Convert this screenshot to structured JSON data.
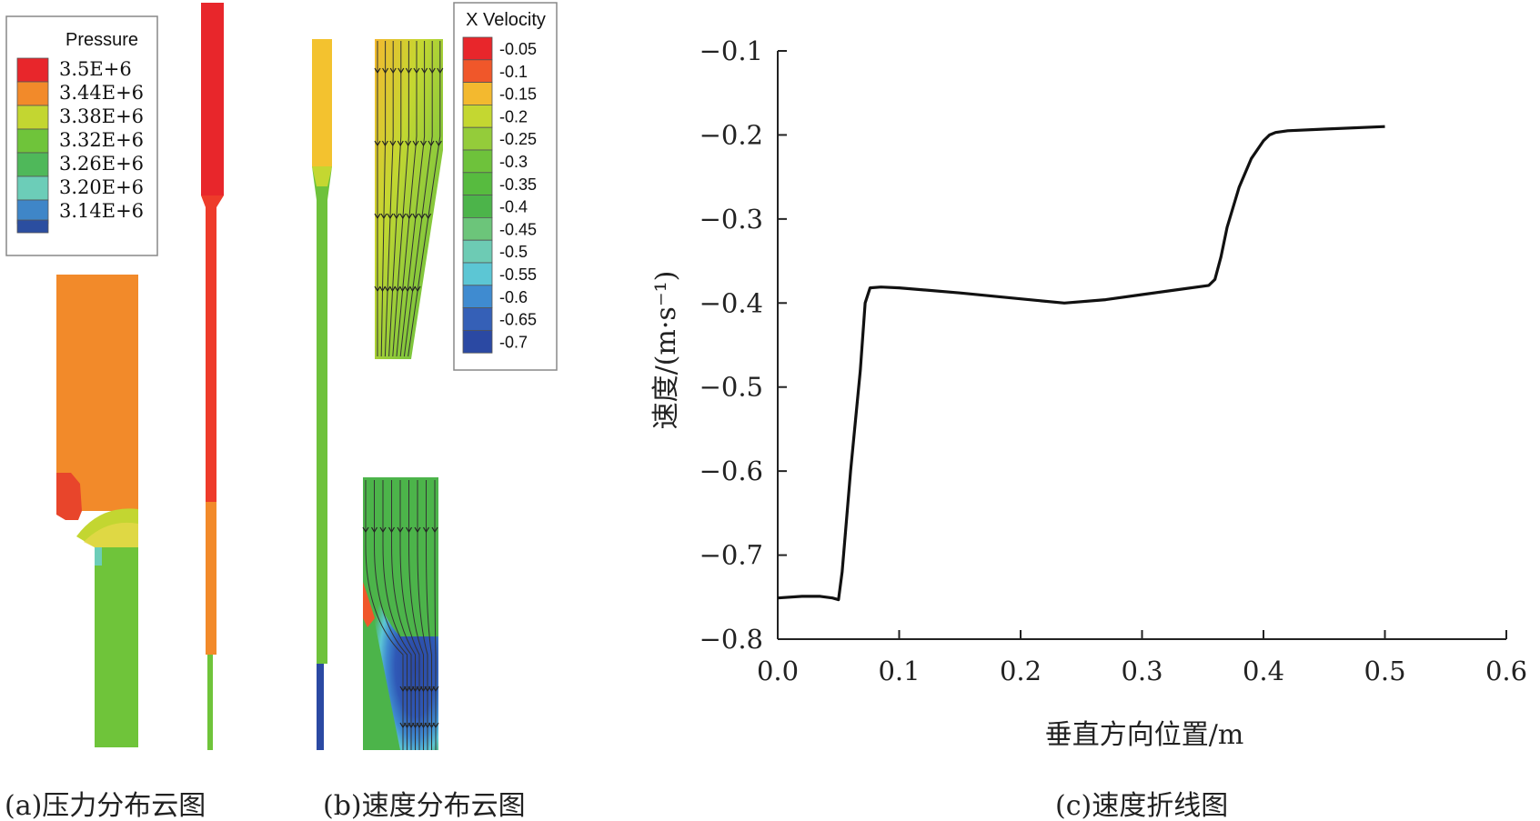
{
  "pressure_legend": {
    "title": "Pressure",
    "entries": [
      {
        "label": "3.5E+6",
        "color": "#e8262b"
      },
      {
        "label": "3.44E+6",
        "color": "#f28a2a"
      },
      {
        "label": "3.38E+6",
        "color": "#c3d631"
      },
      {
        "label": "3.32E+6",
        "color": "#6fc43a"
      },
      {
        "label": "3.26E+6",
        "color": "#4fb85a"
      },
      {
        "label": "3.20E+6",
        "color": "#6ccdb8"
      },
      {
        "label": "3.14E+6",
        "color": "#3f86c8"
      }
    ],
    "extra_swatch_color": "#2b4ea0"
  },
  "velocity_legend": {
    "title": "X Velocity",
    "entries": [
      {
        "label": "-0.05",
        "color": "#e8262b"
      },
      {
        "label": "-0.1",
        "color": "#f0572a"
      },
      {
        "label": "-0.15",
        "color": "#f3b92f"
      },
      {
        "label": "-0.2",
        "color": "#c4d731"
      },
      {
        "label": "-0.25",
        "color": "#94cc3a"
      },
      {
        "label": "-0.3",
        "color": "#6ec23b"
      },
      {
        "label": "-0.35",
        "color": "#57bb3f"
      },
      {
        "label": "-0.4",
        "color": "#4cb44a"
      },
      {
        "label": "-0.45",
        "color": "#6cc57a"
      },
      {
        "label": "-0.5",
        "color": "#6dcbb4"
      },
      {
        "label": "-0.55",
        "color": "#5cc6d4"
      },
      {
        "label": "-0.6",
        "color": "#3f8bd0"
      },
      {
        "label": "-0.65",
        "color": "#3560b7"
      },
      {
        "label": "-0.7",
        "color": "#2b49a3"
      }
    ]
  },
  "captions": {
    "a": "(a)压力分布云图",
    "b": "(b)速度分布云图",
    "c": "(c)速度折线图"
  },
  "chart_data": {
    "type": "line",
    "xlabel": "垂直方向位置/m",
    "ylabel": "速度/(m·s⁻¹)",
    "xlim": [
      0.0,
      0.6
    ],
    "ylim": [
      -0.8,
      -0.1
    ],
    "x_ticks": [
      "0.0",
      "0.1",
      "0.2",
      "0.3",
      "0.4",
      "0.5",
      "0.6"
    ],
    "y_ticks": [
      "−0.1",
      "−0.2",
      "−0.3",
      "−0.4",
      "−0.5",
      "−0.6",
      "−0.7",
      "−0.8"
    ],
    "grid": false,
    "series": [
      {
        "x": [
          0.0,
          0.02,
          0.035,
          0.045,
          0.05,
          0.053,
          0.06,
          0.068,
          0.072,
          0.076,
          0.085,
          0.1,
          0.15,
          0.2,
          0.236,
          0.27,
          0.3,
          0.33,
          0.355,
          0.36,
          0.365,
          0.37,
          0.38,
          0.39,
          0.4,
          0.405,
          0.41,
          0.42,
          0.45,
          0.5
        ],
        "y": [
          -0.751,
          -0.749,
          -0.749,
          -0.751,
          -0.753,
          -0.72,
          -0.6,
          -0.48,
          -0.4,
          -0.382,
          -0.381,
          -0.382,
          -0.388,
          -0.395,
          -0.4,
          -0.396,
          -0.39,
          -0.384,
          -0.379,
          -0.372,
          -0.345,
          -0.31,
          -0.262,
          -0.228,
          -0.207,
          -0.2,
          -0.197,
          -0.195,
          -0.193,
          -0.19
        ]
      }
    ]
  }
}
